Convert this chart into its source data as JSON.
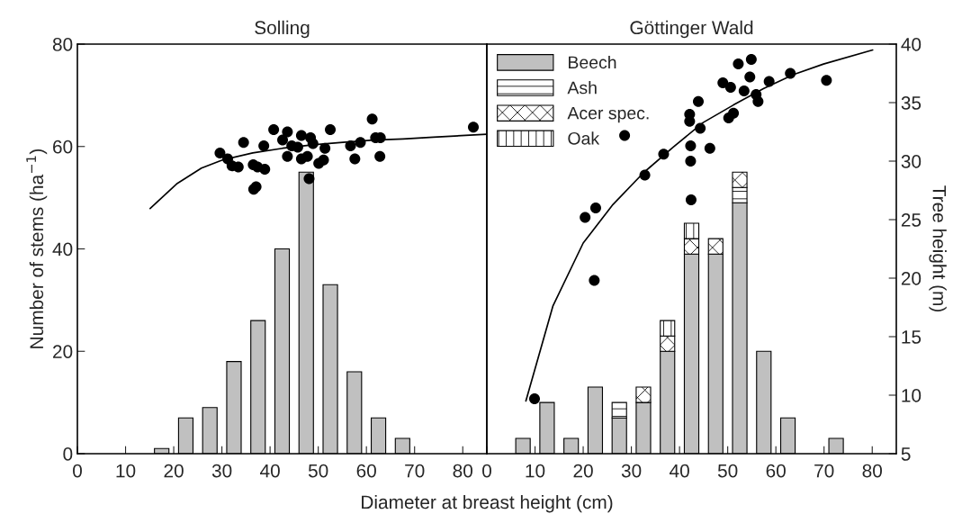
{
  "chart_data": [
    {
      "type": "bar",
      "title": "Solling",
      "xlabel": "Diameter at breast height (cm)",
      "ylabel": "Number of stems (ha$^{−1}$)",
      "x": [
        17.5,
        22.5,
        27.5,
        32.5,
        37.5,
        42.5,
        47.5,
        52.5,
        57.5,
        62.5,
        67.5
      ],
      "xlim": [
        0,
        85
      ],
      "xticks": [
        0,
        10,
        20,
        30,
        40,
        50,
        60,
        70,
        80
      ],
      "ylim": [
        0,
        80
      ],
      "yticks": [
        0,
        20,
        40,
        60,
        80
      ],
      "y2lim": [
        5,
        40
      ],
      "grid": false,
      "series": [
        {
          "color": "#c0c0c0",
          "values": [
            1,
            7,
            9,
            18,
            26,
            40,
            55,
            33,
            16,
            7,
            3
          ]
        },
        {
          "type": "scatter",
          "axis": "y2",
          "color": "#000000",
          "marker": "circle",
          "x": [
            29.6,
            31.2,
            32.1,
            33.4,
            34.5,
            36.5,
            37.4,
            38.9,
            36.6,
            37.1,
            38.7,
            40.75,
            42.6,
            43.6,
            43.6,
            44.5,
            45.75,
            46.5,
            48.4,
            48.9,
            46.5,
            47.75,
            48.1,
            50.1,
            51.1,
            51.4,
            52.5,
            56.7,
            57.6,
            58.75,
            61.2,
            61.9,
            62.9,
            62.8,
            82.2
          ],
          "values": [
            30.7,
            30.2,
            29.6,
            29.5,
            31.6,
            29.7,
            29.5,
            29.3,
            27.6,
            27.8,
            31.3,
            32.7,
            31.8,
            32.5,
            30.4,
            31.3,
            31.2,
            32.2,
            32.0,
            31.5,
            30.2,
            30.4,
            28.5,
            29.8,
            30.1,
            31.1,
            32.7,
            31.3,
            30.2,
            31.6,
            33.6,
            32.0,
            32.0,
            30.4,
            32.9
          ]
        },
        {
          "type": "line",
          "axis": "y2",
          "color": "#000000",
          "line_style": "solid",
          "x": [
            15.1,
            20.75,
            25.75,
            30.1,
            36.4,
            42.6,
            48.9,
            55.1,
            61.4,
            67.6,
            73.9,
            85
          ],
          "values": [
            25.95,
            28.1,
            29.4,
            30.1,
            30.7,
            31.1,
            31.4,
            31.6,
            31.8,
            31.9,
            32.05,
            32.3
          ]
        }
      ]
    },
    {
      "type": "bar",
      "title": "Göttinger Wald",
      "y2label": "Tree height (m)",
      "stacked": true,
      "x": [
        7.5,
        12.5,
        17.5,
        22.5,
        27.5,
        32.5,
        37.5,
        42.5,
        47.5,
        52.5,
        57.5,
        62.5,
        72.5
      ],
      "xlim": [
        0,
        85
      ],
      "xticks": [
        0,
        10,
        20,
        30,
        40,
        50,
        60,
        70,
        80
      ],
      "ylim": [
        0,
        80
      ],
      "y2lim": [
        5,
        40
      ],
      "y2ticks": [
        5,
        10,
        15,
        20,
        25,
        30,
        35,
        40
      ],
      "grid": false,
      "legend": "top left",
      "series": [
        {
          "name": "Beech",
          "color": "#c0c0c0",
          "values": [
            3,
            10,
            3,
            13,
            7,
            10,
            20,
            39,
            39,
            49,
            20,
            7,
            3
          ]
        },
        {
          "name": "Ash",
          "color": "#000000",
          "values": [
            null,
            null,
            null,
            null,
            3,
            null,
            null,
            null,
            null,
            3,
            null,
            null,
            null
          ]
        },
        {
          "name": "Acer spec.",
          "color": "#000000",
          "values": [
            null,
            null,
            null,
            null,
            null,
            3,
            3,
            3,
            3,
            3,
            null,
            null,
            null
          ]
        },
        {
          "name": "Oak",
          "color": "#000000",
          "values": [
            null,
            null,
            null,
            null,
            null,
            null,
            3,
            3,
            null,
            null,
            null,
            null,
            null
          ]
        },
        {
          "type": "scatter",
          "axis": "y2",
          "color": "#000000",
          "marker": "circle",
          "x": [
            9.9,
            20.4,
            22.6,
            22.3,
            28.6,
            32.8,
            36.7,
            42.1,
            42.1,
            42.3,
            42.3,
            42.4,
            43.9,
            44.3,
            46.3,
            49.0,
            50.6,
            50.2,
            51.2,
            52.2,
            53.4,
            54.6,
            54.9,
            55.9,
            56.3,
            58.6,
            63.0,
            70.5
          ],
          "values": [
            9.7,
            25.2,
            26.0,
            19.8,
            32.2,
            28.8,
            30.6,
            34.0,
            33.4,
            31.3,
            30.0,
            26.7,
            35.1,
            32.8,
            31.1,
            36.7,
            36.3,
            33.7,
            34.1,
            38.3,
            36.0,
            37.2,
            38.7,
            35.7,
            35.1,
            36.8,
            37.5,
            36.9
          ]
        },
        {
          "type": "line",
          "axis": "y2",
          "color": "#000000",
          "line_style": "solid",
          "x": [
            8.1,
            13.7,
            20.0,
            26.2,
            32.5,
            38.7,
            44.9,
            51.2,
            57.4,
            63.7,
            69.9,
            80.1
          ],
          "values": [
            9.5,
            17.6,
            23.0,
            26.3,
            29.0,
            31.2,
            33.3,
            34.8,
            36.2,
            37.4,
            38.3,
            39.5
          ]
        }
      ]
    }
  ]
}
